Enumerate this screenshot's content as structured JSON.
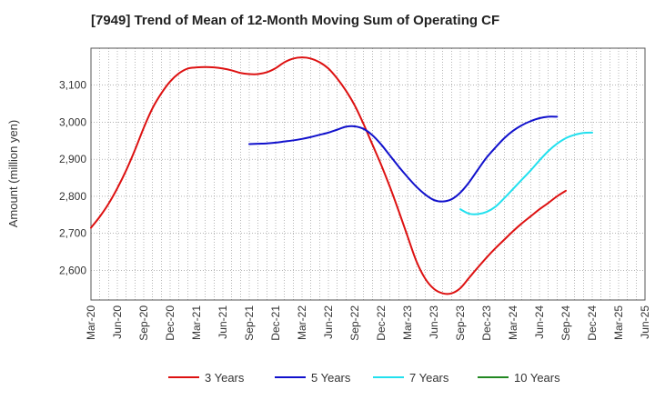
{
  "chart_data": {
    "type": "line",
    "title": "[7949]  Trend of Mean of 12-Month Moving Sum of Operating CF",
    "xlabel": "",
    "ylabel": "Amount (million yen)",
    "ylim": [
      2520,
      3200
    ],
    "yticks": [
      2600,
      2700,
      2800,
      2900,
      3000,
      3100
    ],
    "ytick_labels": [
      "2,600",
      "2,700",
      "2,800",
      "2,900",
      "3,000",
      "3,100"
    ],
    "x_labels": [
      "Mar-20",
      "Jun-20",
      "Sep-20",
      "Dec-20",
      "Mar-21",
      "Jun-21",
      "Sep-21",
      "Dec-21",
      "Mar-22",
      "Jun-22",
      "Sep-22",
      "Dec-22",
      "Mar-23",
      "Jun-23",
      "Sep-23",
      "Dec-23",
      "Mar-24",
      "Jun-24",
      "Sep-24",
      "Dec-24",
      "Mar-25",
      "Jun-25"
    ],
    "grid": true,
    "legend_position": "bottom",
    "series": [
      {
        "name": "3 Years",
        "color": "#dd1111",
        "start_index": 0,
        "values": [
          2715,
          2745,
          2780,
          2822,
          2870,
          2925,
          2985,
          3038,
          3078,
          3110,
          3132,
          3145,
          3148,
          3149,
          3148,
          3145,
          3140,
          3133,
          3130,
          3130,
          3135,
          3146,
          3162,
          3172,
          3175,
          3172,
          3162,
          3145,
          3118,
          3085,
          3045,
          2995,
          2940,
          2885,
          2825,
          2760,
          2692,
          2625,
          2578,
          2550,
          2538,
          2538,
          2552,
          2580,
          2608,
          2635,
          2660,
          2683,
          2706,
          2727,
          2746,
          2765,
          2782,
          2800,
          2815
        ]
      },
      {
        "name": "5 Years",
        "color": "#1111cc",
        "start_index": 18,
        "values": [
          2941,
          2942,
          2943,
          2945,
          2948,
          2951,
          2955,
          2960,
          2966,
          2972,
          2980,
          2988,
          2989,
          2982,
          2965,
          2940,
          2910,
          2880,
          2852,
          2826,
          2805,
          2790,
          2786,
          2792,
          2810,
          2838,
          2872,
          2905,
          2932,
          2957,
          2977,
          2992,
          3003,
          3011,
          3015,
          3015
        ]
      },
      {
        "name": "7 Years",
        "color": "#22e0ee",
        "start_index": 42,
        "values": [
          2765,
          2753,
          2752,
          2758,
          2772,
          2795,
          2820,
          2845,
          2870,
          2897,
          2922,
          2942,
          2957,
          2966,
          2971,
          2972
        ]
      },
      {
        "name": "10 Years",
        "color": "#228822",
        "start_index": 0,
        "values": []
      }
    ]
  }
}
